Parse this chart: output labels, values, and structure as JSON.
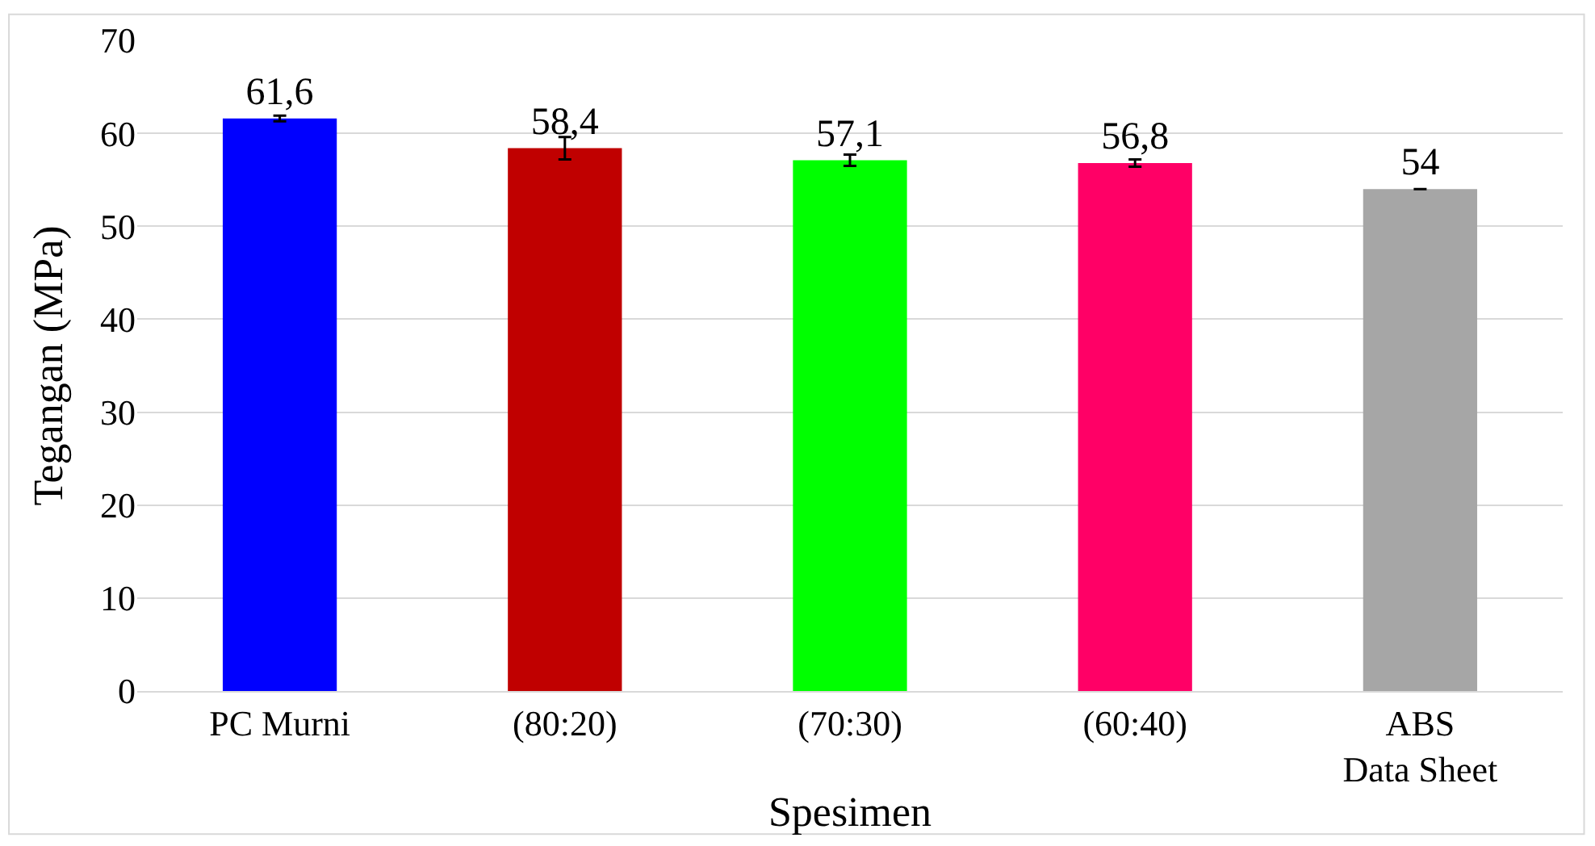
{
  "chart_data": {
    "type": "bar",
    "xlabel": "Spesimen",
    "ylabel": "Tegangan (MPa)",
    "categories": [
      "PC Murni",
      "(80:20)",
      "(70:30)",
      "(60:40)",
      "ABS\nData Sheet"
    ],
    "values": [
      61.6,
      58.4,
      57.1,
      56.8,
      54
    ],
    "colors": [
      "#0000ff",
      "#c00000",
      "#00ff00",
      "#ff0066",
      "#a6a6a6"
    ],
    "errors": [
      0.3,
      1.2,
      0.6,
      0.4,
      null
    ],
    "value_labels": [
      "61,6",
      "58,4",
      "57,1",
      "56,8",
      "54"
    ],
    "ylim": [
      0,
      70
    ],
    "yticks": [
      0,
      10,
      20,
      30,
      40,
      50,
      60,
      70
    ],
    "grid": "y",
    "legend": false
  }
}
